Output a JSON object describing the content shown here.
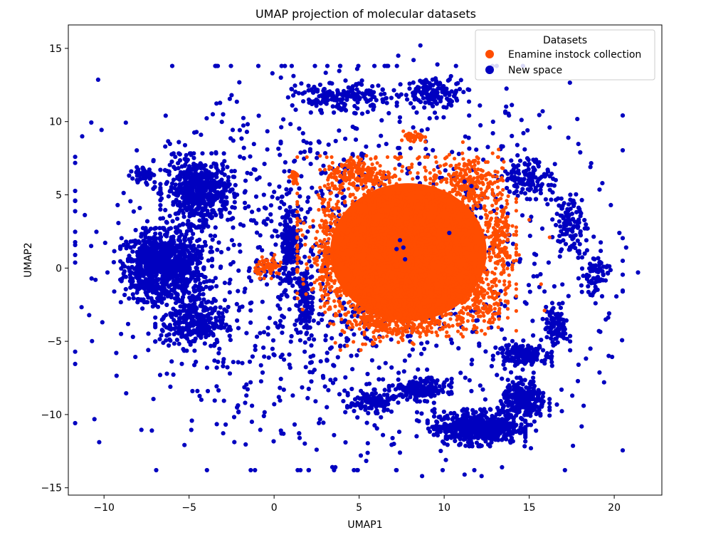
{
  "chart_data": {
    "type": "scatter",
    "title": "UMAP projection of molecular datasets",
    "xlabel": "UMAP1",
    "ylabel": "UMAP2",
    "xlim": [
      -12.1,
      22.8
    ],
    "ylim": [
      -15.5,
      16.6
    ],
    "xticks": [
      -10,
      -5,
      0,
      5,
      10,
      15,
      20
    ],
    "yticks": [
      -15,
      -10,
      -5,
      0,
      5,
      10,
      15
    ],
    "xtick_labels": [
      "−10",
      "−5",
      "0",
      "5",
      "10",
      "15",
      "20"
    ],
    "ytick_labels": [
      "−15",
      "−10",
      "−5",
      "0",
      "5",
      "10",
      "15"
    ],
    "grid": false,
    "legend": {
      "title": "Datasets",
      "placement": "top-right",
      "entries": [
        "Enamine instock collection",
        "New space"
      ]
    },
    "series": [
      {
        "name": "New space",
        "color": "#0000c0",
        "points": [
          [
            -10.5,
            -0.8
          ],
          [
            -9.8,
            -0.3
          ],
          [
            -9.4,
            -1.6
          ],
          [
            -10.1,
            -3.7
          ],
          [
            -9.0,
            -4.5
          ],
          [
            -8.7,
            1.8
          ],
          [
            -9.2,
            4.3
          ],
          [
            -8.4,
            6.6
          ],
          [
            -7.9,
            4.1
          ],
          [
            -8.9,
            0.3
          ],
          [
            -7.8,
            -2.2
          ],
          [
            -8.3,
            -4.7
          ],
          [
            -7.4,
            -5.6
          ],
          [
            -6.7,
            -7.3
          ],
          [
            -6.1,
            -8.1
          ],
          [
            -5.6,
            8.6
          ],
          [
            -6.4,
            8.3
          ],
          [
            -4.3,
            9.1
          ],
          [
            -3.9,
            -8.4
          ],
          [
            -4.8,
            -8.4
          ],
          [
            -2.4,
            8.7
          ],
          [
            -1.6,
            9.3
          ],
          [
            -1.3,
            -9.4
          ],
          [
            -0.9,
            10.4
          ],
          [
            -0.1,
            13.3
          ],
          [
            0.4,
            13.0
          ],
          [
            1.6,
            12.6
          ],
          [
            2.2,
            12.2
          ],
          [
            3.4,
            12.6
          ],
          [
            4.2,
            12.8
          ],
          [
            5.9,
            13.8
          ],
          [
            7.3,
            14.5
          ],
          [
            8.2,
            14.2
          ],
          [
            8.6,
            15.2
          ],
          [
            9.6,
            13.9
          ],
          [
            10.4,
            13.1
          ],
          [
            11.4,
            12.2
          ],
          [
            12.1,
            11.1
          ],
          [
            13.6,
            10.6
          ],
          [
            14.9,
            9.4
          ],
          [
            16.2,
            9.6
          ],
          [
            17.3,
            8.9
          ],
          [
            18.0,
            7.9
          ],
          [
            18.6,
            6.9
          ],
          [
            19.3,
            5.8
          ],
          [
            19.8,
            4.3
          ],
          [
            20.3,
            2.4
          ],
          [
            20.7,
            1.4
          ],
          [
            21.4,
            -0.3
          ],
          [
            20.5,
            -1.6
          ],
          [
            19.7,
            -3.1
          ],
          [
            19.1,
            -4.3
          ],
          [
            18.6,
            -5.5
          ],
          [
            17.9,
            -6.6
          ],
          [
            16.9,
            -8.3
          ],
          [
            16.2,
            -9.7
          ],
          [
            15.4,
            -11.1
          ],
          [
            15.1,
            -12.3
          ],
          [
            13.4,
            -13.6
          ],
          [
            12.2,
            -14.2
          ],
          [
            11.2,
            -14.1
          ],
          [
            10.1,
            -13.1
          ],
          [
            8.7,
            -14.2
          ],
          [
            7.4,
            -12.6
          ],
          [
            6.4,
            -11.4
          ],
          [
            5.1,
            -12.8
          ],
          [
            4.2,
            -11.9
          ],
          [
            3.6,
            -13.6
          ],
          [
            2.5,
            -12.4
          ],
          [
            1.5,
            -11.6
          ],
          [
            0.4,
            -11.1
          ],
          [
            -0.6,
            -10.1
          ],
          [
            -1.7,
            -9.2
          ],
          [
            -2.6,
            -7.2
          ],
          [
            -3.3,
            -6.4
          ],
          [
            -2.1,
            -4.1
          ],
          [
            -1.4,
            -2.4
          ],
          [
            -2.4,
            0.4
          ],
          [
            -1.8,
            2.9
          ],
          [
            -0.6,
            5.0
          ],
          [
            0.6,
            6.6
          ],
          [
            1.3,
            2.1
          ],
          [
            1.6,
            -0.4
          ],
          [
            1.9,
            -2.9
          ],
          [
            2.2,
            -4.6
          ],
          [
            3.3,
            -5.5
          ],
          [
            3.9,
            -5.3
          ],
          [
            4.1,
            7.4
          ],
          [
            7.4,
            1.9
          ],
          [
            7.6,
            1.4
          ],
          [
            7.2,
            1.3
          ],
          [
            7.7,
            0.6
          ],
          [
            10.3,
            2.4
          ],
          [
            11.2,
            5.9
          ],
          [
            11.6,
            5.6
          ],
          [
            12.3,
            7.4
          ],
          [
            13.6,
            6.6
          ],
          [
            14.6,
            3.6
          ],
          [
            15.4,
            0.9
          ],
          [
            15.9,
            -1.6
          ],
          [
            16.6,
            -3.4
          ],
          [
            15.7,
            -4.9
          ],
          [
            14.6,
            -6.4
          ],
          [
            13.1,
            -7.3
          ],
          [
            11.6,
            -8.4
          ],
          [
            10.3,
            -8.6
          ],
          [
            9.4,
            -9.2
          ],
          [
            8.1,
            -8.1
          ],
          [
            6.4,
            -7.6
          ],
          [
            5.6,
            -7.9
          ],
          [
            4.6,
            -6.9
          ],
          [
            3.6,
            -7.6
          ],
          [
            2.1,
            -7.1
          ],
          [
            0.9,
            -6.6
          ],
          [
            6.9,
            -9.8
          ],
          [
            8.4,
            -10.4
          ],
          [
            4.9,
            -10.2
          ],
          [
            3.1,
            -9.5
          ],
          [
            1.1,
            -8.7
          ],
          [
            17.6,
            4.6
          ],
          [
            18.4,
            2.7
          ],
          [
            17.9,
            -0.7
          ],
          [
            18.9,
            -2.4
          ],
          [
            18.2,
            -9.4
          ],
          [
            19.4,
            -7.8
          ],
          [
            16.4,
            6.1
          ],
          [
            15.4,
            7.4
          ],
          [
            14.3,
            8.4
          ],
          [
            9.1,
            11.4
          ],
          [
            6.6,
            11.6
          ],
          [
            4.9,
            10.9
          ],
          [
            2.8,
            10.6
          ],
          [
            1.7,
            9.2
          ],
          [
            -0.4,
            8.1
          ],
          [
            -3.1,
            3.6
          ],
          [
            -3.6,
            -0.9
          ],
          [
            -3.1,
            -3.9
          ],
          [
            -4.6,
            -6.4
          ],
          [
            -5.7,
            -4.9
          ],
          [
            -6.3,
            3.1
          ],
          [
            -5.9,
            6.9
          ],
          [
            -3.7,
            6.1
          ],
          [
            -8.2,
            -1.2
          ],
          [
            -7.1,
            7.3
          ],
          [
            -6.8,
            5.1
          ]
        ],
        "clusters": [
          {
            "cx": -7.2,
            "cy": 0.2,
            "rx": 1.6,
            "ry": 2.2,
            "n": 520
          },
          {
            "cx": -5.6,
            "cy": 0.0,
            "rx": 1.7,
            "ry": 2.8,
            "n": 420
          },
          {
            "cx": -4.5,
            "cy": 5.3,
            "rx": 1.9,
            "ry": 2.2,
            "n": 520
          },
          {
            "cx": -4.8,
            "cy": -3.8,
            "rx": 1.9,
            "ry": 1.6,
            "n": 280
          },
          {
            "cx": -7.6,
            "cy": 6.4,
            "rx": 0.5,
            "ry": 0.5,
            "n": 60
          },
          {
            "cx": 0.9,
            "cy": 1.6,
            "rx": 0.6,
            "ry": 3.0,
            "n": 160
          },
          {
            "cx": 1.8,
            "cy": -2.4,
            "rx": 0.5,
            "ry": 2.2,
            "n": 110
          },
          {
            "cx": 11.9,
            "cy": -10.9,
            "rx": 2.5,
            "ry": 1.1,
            "n": 560
          },
          {
            "cx": 14.7,
            "cy": -9.1,
            "rx": 1.3,
            "ry": 1.4,
            "n": 260
          },
          {
            "cx": 14.6,
            "cy": -5.9,
            "rx": 1.5,
            "ry": 0.6,
            "n": 170
          },
          {
            "cx": 8.6,
            "cy": -8.3,
            "rx": 1.6,
            "ry": 0.7,
            "n": 170
          },
          {
            "cx": 16.6,
            "cy": -4.0,
            "rx": 0.7,
            "ry": 1.4,
            "n": 100
          },
          {
            "cx": 5.8,
            "cy": -9.1,
            "rx": 1.3,
            "ry": 0.7,
            "n": 120
          },
          {
            "cx": 4.0,
            "cy": 11.6,
            "rx": 2.8,
            "ry": 0.9,
            "n": 170
          },
          {
            "cx": 9.4,
            "cy": 12.0,
            "rx": 1.8,
            "ry": 0.9,
            "n": 140
          },
          {
            "cx": 14.9,
            "cy": 6.2,
            "rx": 1.4,
            "ry": 1.3,
            "n": 120
          },
          {
            "cx": 17.4,
            "cy": 3.0,
            "rx": 0.9,
            "ry": 2.1,
            "n": 110
          },
          {
            "cx": 18.9,
            "cy": -0.4,
            "rx": 0.8,
            "ry": 1.4,
            "n": 70
          },
          {
            "cx": 4.4,
            "cy": 0.0,
            "rx": 14.0,
            "ry": 12.0,
            "n": 1300
          }
        ]
      },
      {
        "name": "Enamine instock collection",
        "color": "#ff4d00",
        "points": [
          [
            7.8,
            9.1
          ],
          [
            8.3,
            9.3
          ],
          [
            8.1,
            8.9
          ],
          [
            1.0,
            6.3
          ],
          [
            1.3,
            5.9
          ],
          [
            3.6,
            -5.1
          ],
          [
            3.9,
            -5.6
          ],
          [
            4.3,
            -5.3
          ],
          [
            14.4,
            0.9
          ],
          [
            15.0,
            3.3
          ],
          [
            16.2,
            2.1
          ],
          [
            15.7,
            -1.1
          ],
          [
            15.9,
            -2.9
          ],
          [
            2.5,
            1.7
          ],
          [
            2.3,
            -1.4
          ],
          [
            13.2,
            8.1
          ],
          [
            11.1,
            8.6
          ],
          [
            5.1,
            -5.6
          ],
          [
            9.6,
            -4.6
          ],
          [
            12.6,
            -4.1
          ]
        ],
        "clusters": [
          {
            "cx": 7.8,
            "cy": 1.6,
            "rx": 5.6,
            "ry": 5.2,
            "n": 1500
          },
          {
            "cx": 5.0,
            "cy": 6.4,
            "rx": 2.0,
            "ry": 1.2,
            "n": 220
          },
          {
            "cx": 11.5,
            "cy": 6.0,
            "rx": 1.7,
            "ry": 1.6,
            "n": 200
          },
          {
            "cx": 5.6,
            "cy": -2.9,
            "rx": 2.3,
            "ry": 2.0,
            "n": 240
          },
          {
            "cx": 8.0,
            "cy": -3.5,
            "rx": 2.7,
            "ry": 1.4,
            "n": 240
          },
          {
            "cx": 11.9,
            "cy": -2.2,
            "rx": 1.6,
            "ry": 2.0,
            "n": 180
          },
          {
            "cx": 8.2,
            "cy": 8.9,
            "rx": 0.6,
            "ry": 0.4,
            "n": 40
          },
          {
            "cx": -0.3,
            "cy": 0.1,
            "rx": 0.8,
            "ry": 0.7,
            "n": 70
          },
          {
            "cx": 1.2,
            "cy": 6.1,
            "rx": 0.4,
            "ry": 0.4,
            "n": 18
          },
          {
            "cx": 13.3,
            "cy": 1.6,
            "rx": 0.7,
            "ry": 3.4,
            "n": 130
          },
          {
            "cx": 3.1,
            "cy": 1.0,
            "rx": 0.5,
            "ry": 3.2,
            "n": 120
          }
        ]
      }
    ]
  }
}
